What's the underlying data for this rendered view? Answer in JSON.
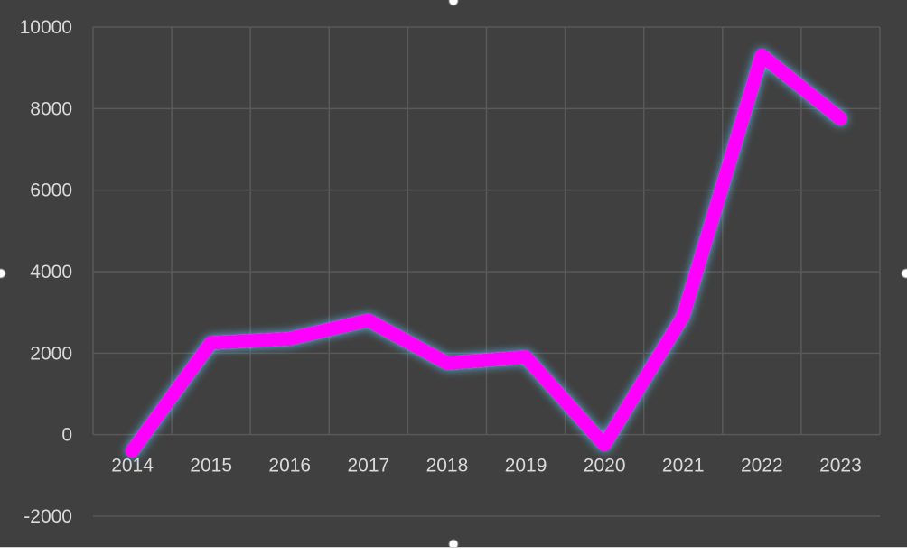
{
  "chart_data": {
    "type": "line",
    "title": "",
    "xlabel": "",
    "ylabel": "",
    "categories": [
      "2014",
      "2015",
      "2016",
      "2017",
      "2018",
      "2019",
      "2020",
      "2021",
      "2022",
      "2023"
    ],
    "series": [
      {
        "values": [
          -400,
          2250,
          2350,
          2800,
          1750,
          1900,
          -250,
          2900,
          9300,
          7750
        ],
        "color": "#ff00ff",
        "glow_color": "#5fc8ff"
      }
    ],
    "ylim": [
      -2000,
      10000
    ],
    "yticks": [
      "-2000",
      "0",
      "2000",
      "4000",
      "6000",
      "8000",
      "10000"
    ],
    "grid": true,
    "legend": "none",
    "background": "#404040"
  }
}
